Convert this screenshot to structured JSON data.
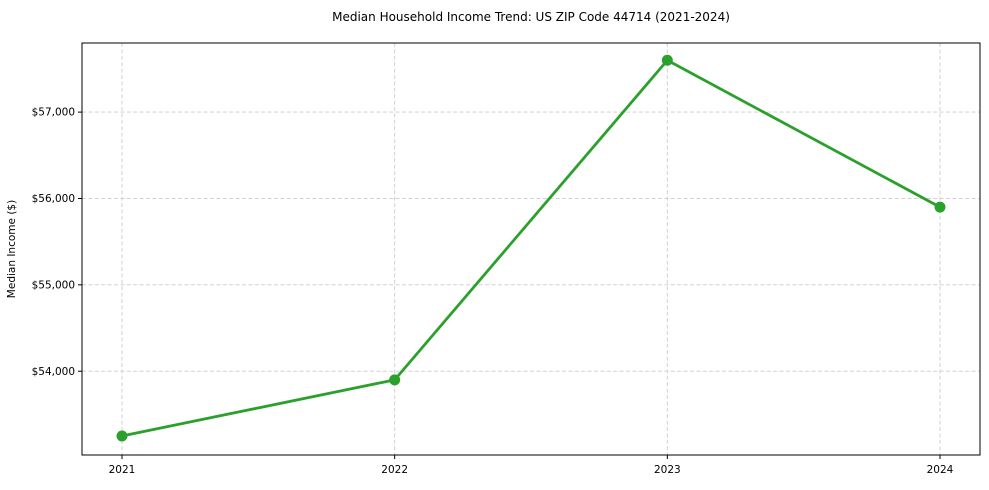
{
  "chart_data": {
    "type": "line",
    "title": "Median Household Income Trend: US ZIP Code 44714 (2021-2024)",
    "xlabel": "",
    "ylabel": "Median Income ($)",
    "x": [
      2021,
      2022,
      2023,
      2024
    ],
    "xtick_labels": [
      "2021",
      "2022",
      "2023",
      "2024"
    ],
    "values": [
      53250,
      53900,
      57600,
      55900
    ],
    "yticks": [
      54000,
      55000,
      56000,
      57000
    ],
    "ytick_labels": [
      "$54,000",
      "$55,000",
      "$56,000",
      "$57,000"
    ],
    "ylim": [
      53030,
      57800
    ],
    "grid": true,
    "legend": "none",
    "line_color": "#2ca02c",
    "marker_color": "#2ca02c",
    "grid_color": "#cccccc",
    "spine_color": "#000000",
    "background_color": "#ffffff"
  }
}
